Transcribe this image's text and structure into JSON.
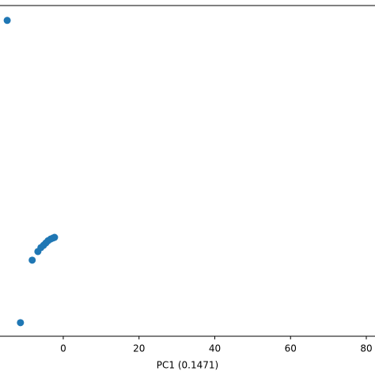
{
  "chart_data": {
    "type": "scatter",
    "x_label": "PC1 (0.1471)",
    "x": [
      -14.8,
      -11.3,
      -8.2,
      -6.7,
      -5.9,
      -5.2,
      -4.6,
      -4.0,
      -3.3,
      -2.7,
      -2.3
    ],
    "values": [
      95.5,
      4.1,
      23.0,
      25.6,
      26.8,
      27.5,
      28.2,
      28.9,
      29.4,
      29.7,
      29.9
    ],
    "color": "#1f77b4",
    "xlim": [
      -16.7,
      82.3
    ],
    "xticks": [
      0,
      20,
      40,
      60,
      80
    ],
    "ylim": [
      0,
      100
    ],
    "grid": false
  }
}
